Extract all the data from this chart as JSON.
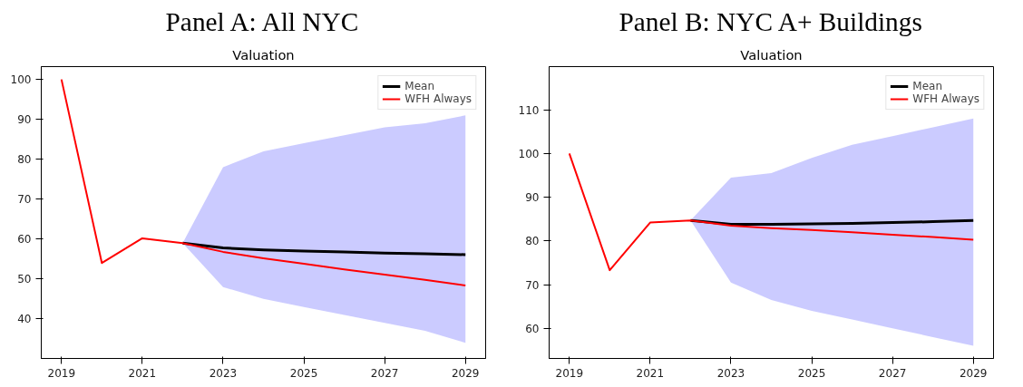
{
  "chart_data": [
    {
      "type": "line",
      "title": "Panel A: All NYC",
      "subtitle": "Valuation",
      "x": [
        2019,
        2020,
        2021,
        2022,
        2023,
        2024,
        2025,
        2026,
        2027,
        2028,
        2029
      ],
      "xlim": [
        2018.5,
        2029.5
      ],
      "xticks": [
        2019,
        2021,
        2023,
        2025,
        2027,
        2029
      ],
      "ylim": [
        30.1,
        103.2
      ],
      "yticks": [
        40,
        50,
        60,
        70,
        80,
        90,
        100
      ],
      "grid": false,
      "legend": "top right",
      "series": [
        {
          "name": "Mean",
          "color": "#000000",
          "values": [
            null,
            null,
            null,
            59,
            57.8,
            57.3,
            57,
            56.8,
            56.5,
            56.3,
            56.1
          ],
          "lower": [
            null,
            null,
            null,
            59,
            48,
            45,
            43,
            41,
            39,
            37,
            34
          ],
          "upper": [
            null,
            null,
            null,
            59,
            78,
            82,
            84,
            86,
            88,
            89,
            91
          ]
        },
        {
          "name": "WFH Always",
          "color": "#ff0000",
          "values": [
            100,
            54,
            60.2,
            59,
            56.8,
            55.2,
            53.8,
            52.4,
            51.1,
            49.8,
            48.4
          ]
        }
      ]
    },
    {
      "type": "line",
      "title": "Panel B: NYC A+ Buildings",
      "subtitle": "Valuation",
      "x": [
        2019,
        2020,
        2021,
        2022,
        2023,
        2024,
        2025,
        2026,
        2027,
        2028,
        2029
      ],
      "xlim": [
        2018.5,
        2029.5
      ],
      "xticks": [
        2019,
        2021,
        2023,
        2025,
        2027,
        2029
      ],
      "ylim": [
        53.1,
        119.9
      ],
      "yticks": [
        60,
        70,
        80,
        90,
        100,
        110
      ],
      "grid": false,
      "legend": "top right",
      "series": [
        {
          "name": "Mean",
          "color": "#000000",
          "values": [
            null,
            null,
            null,
            84.7,
            83.8,
            83.8,
            83.9,
            84.0,
            84.2,
            84.4,
            84.7
          ],
          "lower": [
            null,
            null,
            null,
            84.7,
            70.5,
            66.5,
            64,
            62,
            60,
            58,
            56
          ],
          "upper": [
            null,
            null,
            null,
            84.7,
            94.5,
            95.5,
            99,
            102,
            104,
            106,
            108
          ]
        },
        {
          "name": "WFH Always",
          "color": "#ff0000",
          "values": [
            100,
            73.3,
            84.2,
            84.7,
            83.5,
            82.9,
            82.5,
            82.0,
            81.4,
            80.9,
            80.3
          ]
        }
      ]
    }
  ]
}
